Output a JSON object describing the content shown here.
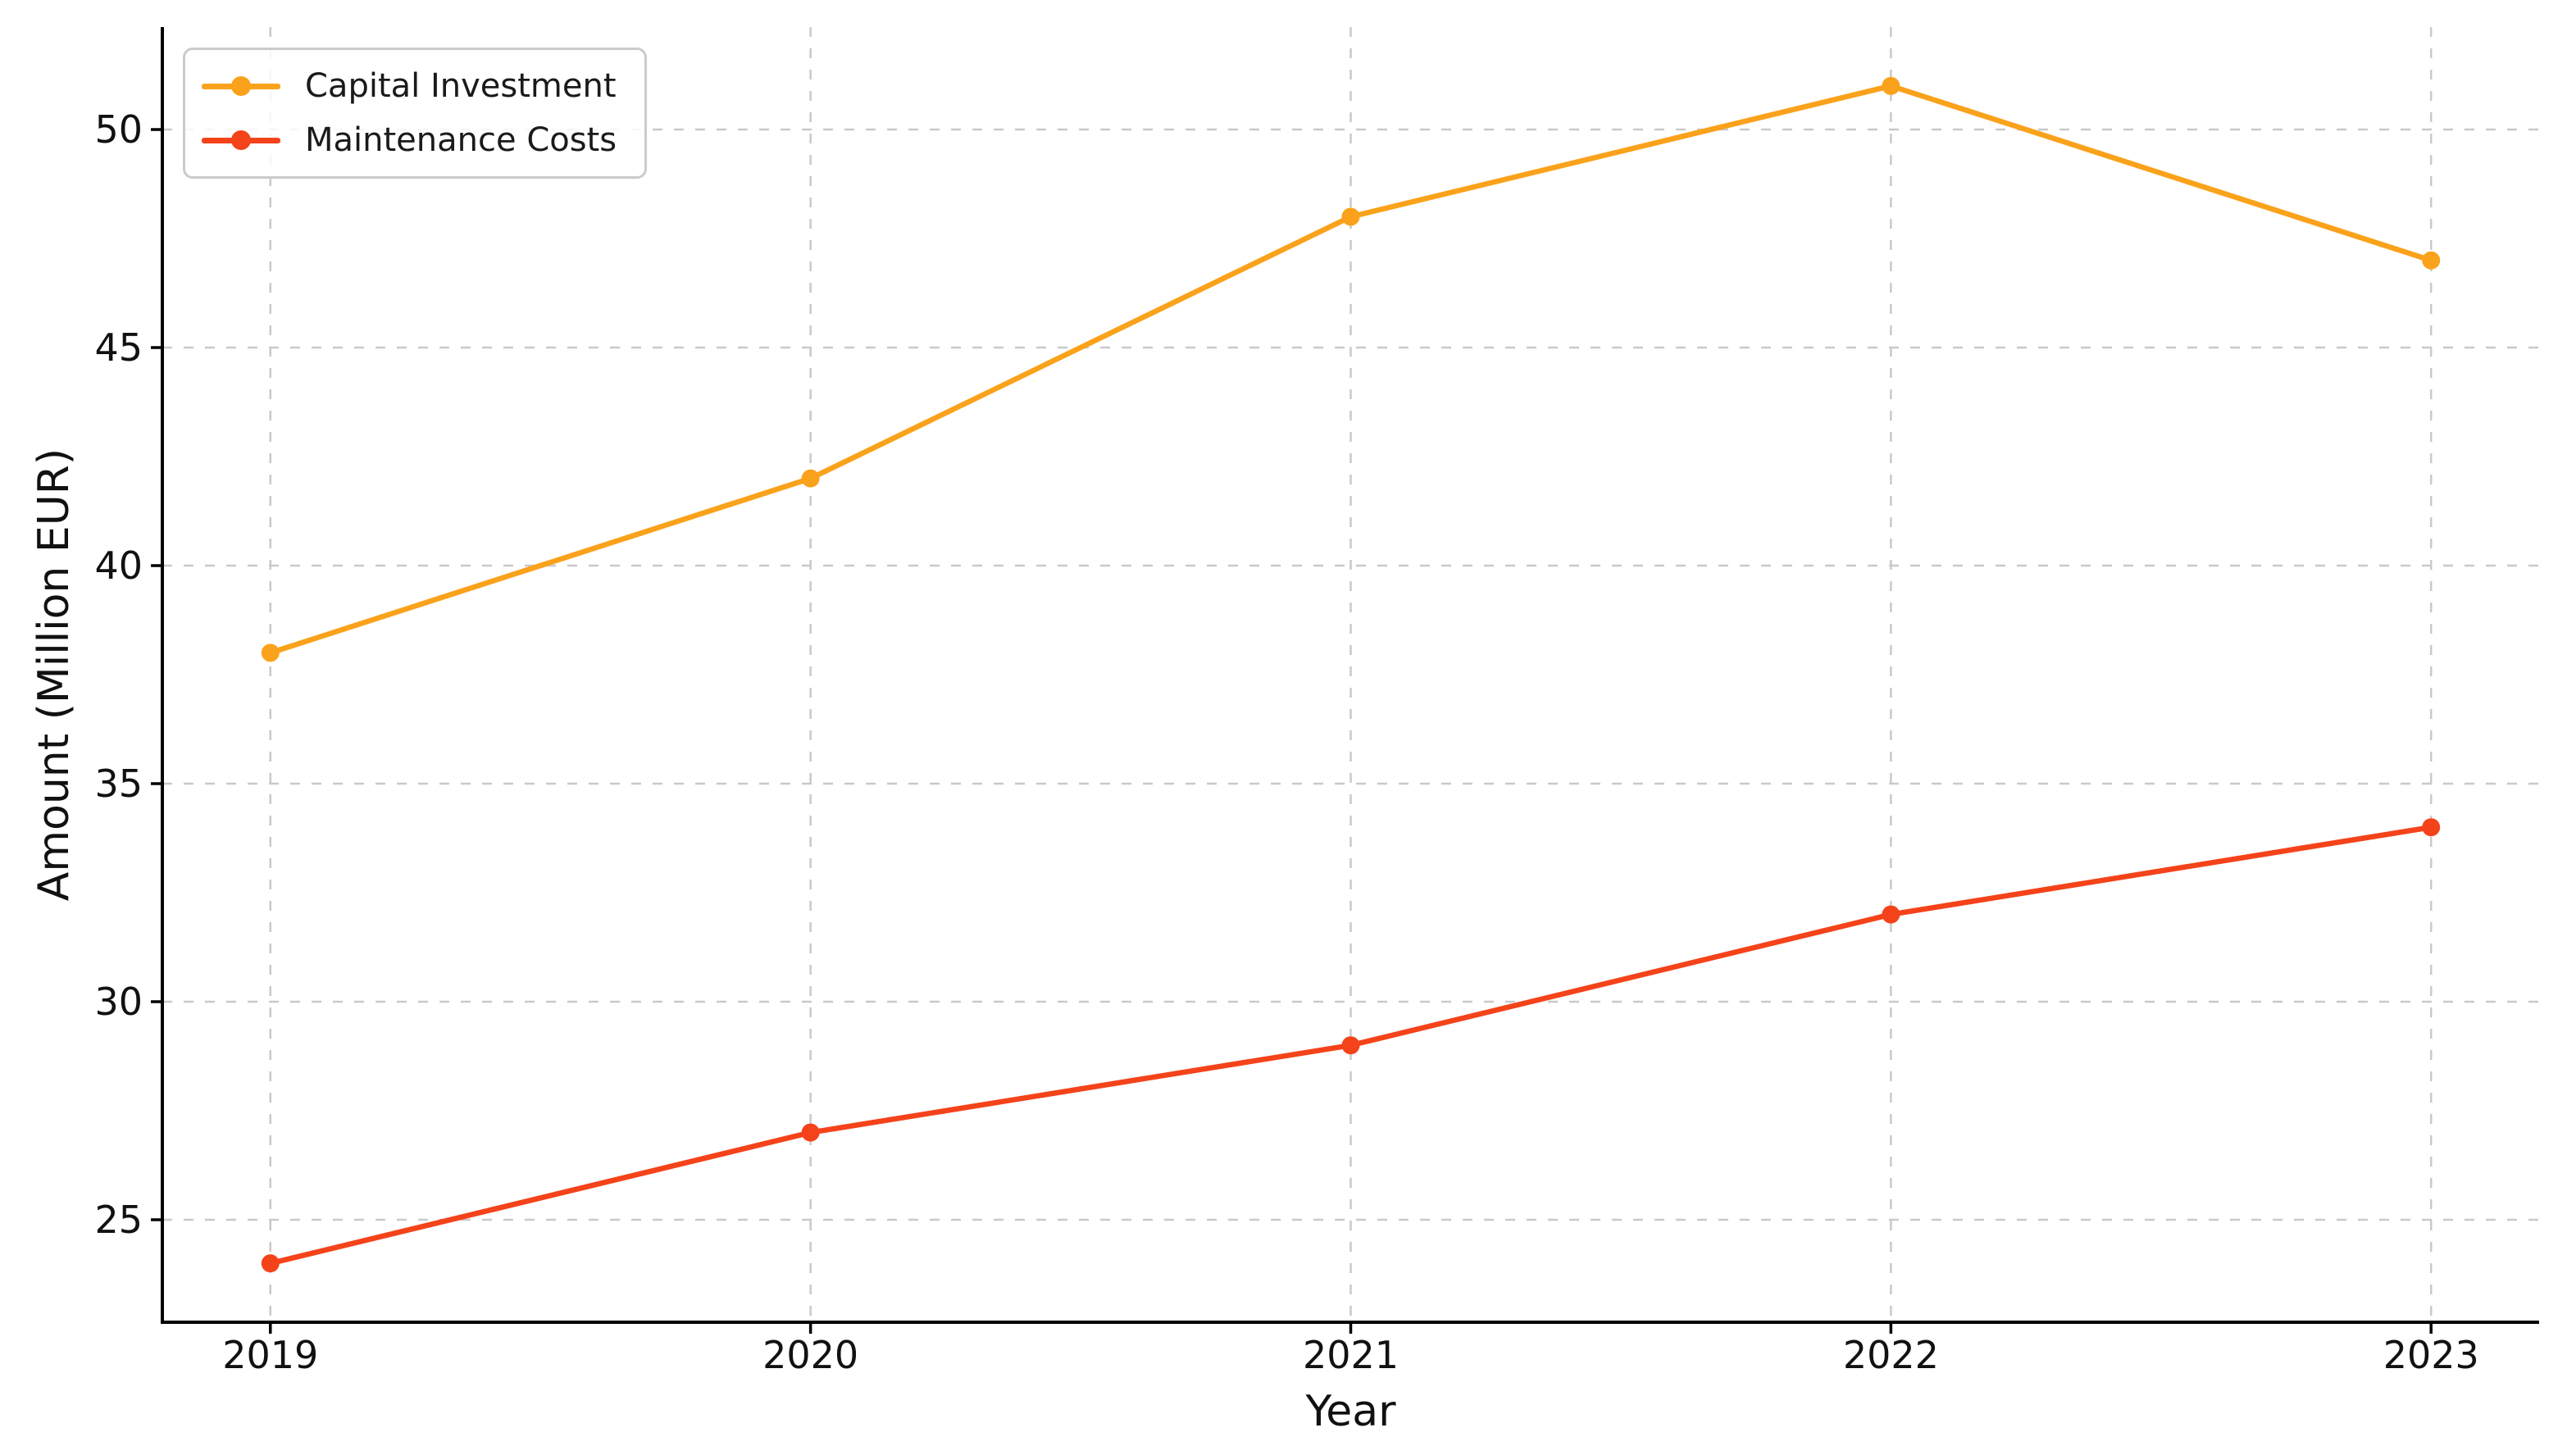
{
  "figure": {
    "background": "#ffffff"
  },
  "chart_data": {
    "type": "line",
    "title": "",
    "xlabel": "Year",
    "ylabel": "Amount (Million EUR)",
    "categories": [
      "2019",
      "2020",
      "2021",
      "2022",
      "2023"
    ],
    "series": [
      {
        "name": "Capital Investment",
        "values": [
          38,
          42,
          48,
          51,
          47
        ],
        "color": "#FAA21B"
      },
      {
        "name": "Maintenance Costs",
        "values": [
          24,
          27,
          29,
          32,
          34
        ],
        "color": "#F4431A"
      }
    ],
    "xlim": [
      2018.8,
      2023.2
    ],
    "x_numeric": [
      2019,
      2020,
      2021,
      2022,
      2023
    ],
    "ylim": [
      22.65,
      52.35
    ],
    "yticks": [
      25,
      30,
      35,
      40,
      45,
      50
    ],
    "grid": true,
    "grid_style": "dashed",
    "grid_color": "#c9c9c9",
    "legend_position": "upper left",
    "spine_color": "#000000",
    "tick_label_color": "#111111",
    "marker": "circle"
  }
}
